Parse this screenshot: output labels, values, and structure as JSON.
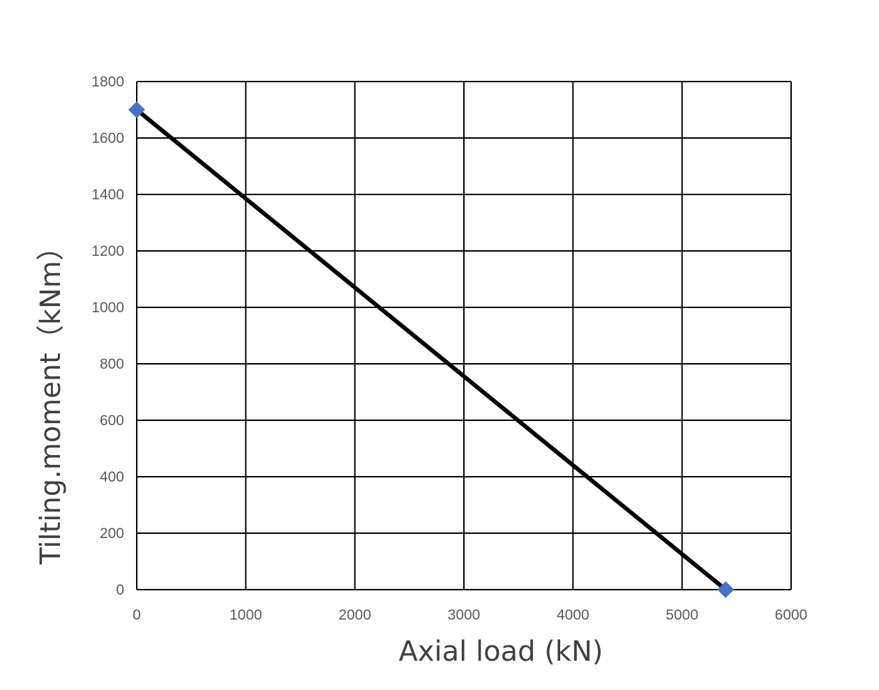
{
  "chart_data": {
    "type": "line",
    "xlabel": "Axial load (kN)",
    "ylabel": "Tilting.moment（kNm）",
    "xlim": [
      0,
      6000
    ],
    "ylim": [
      0,
      1800
    ],
    "x_ticks": [
      0,
      1000,
      2000,
      3000,
      4000,
      5000,
      6000
    ],
    "y_ticks": [
      0,
      200,
      400,
      600,
      800,
      1000,
      1200,
      1400,
      1600,
      1800
    ],
    "grid": true,
    "legend": "none",
    "series": [
      {
        "x": [
          0,
          5400
        ],
        "y": [
          1700,
          0
        ],
        "line_color": "#000000",
        "marker": "diamond",
        "marker_color": "#4472c4"
      }
    ]
  }
}
